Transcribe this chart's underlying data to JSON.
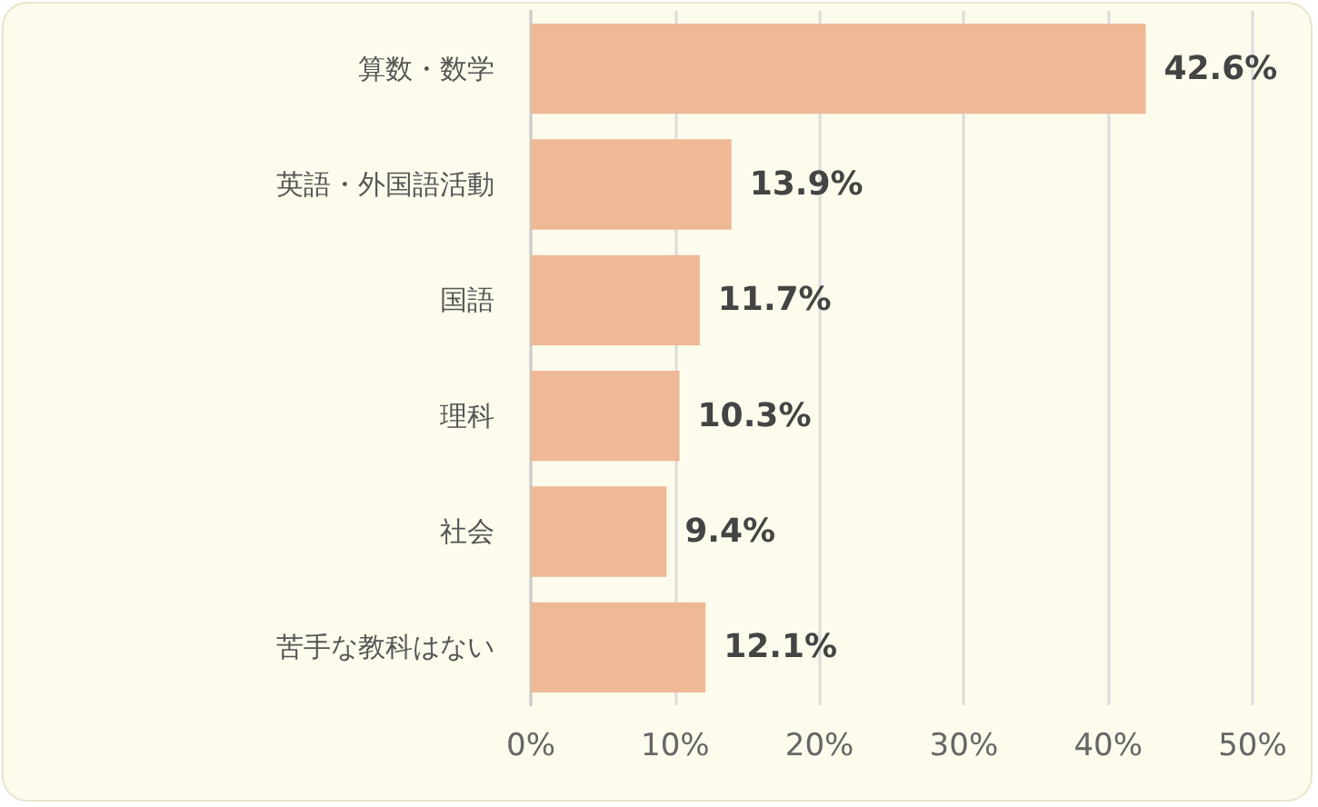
{
  "chart_data": {
    "type": "bar",
    "orientation": "horizontal",
    "categories": [
      "算数・数学",
      "英語・外国語活動",
      "国語",
      "理科",
      "社会",
      "苦手な教科はない"
    ],
    "values": [
      42.6,
      13.9,
      11.7,
      10.3,
      9.4,
      12.1
    ],
    "value_labels": [
      "42.6%",
      "13.9%",
      "11.7%",
      "10.3%",
      "9.4%",
      "12.1%"
    ],
    "color": "#eeb994",
    "xlim": [
      0,
      50
    ],
    "xticks": [
      {
        "value": 0,
        "label": "0%"
      },
      {
        "value": 10,
        "label": "10%"
      },
      {
        "value": 20,
        "label": "20%"
      },
      {
        "value": 30,
        "label": "30%"
      },
      {
        "value": 40,
        "label": "40%"
      },
      {
        "value": 50,
        "label": "50%"
      }
    ],
    "grid": "x"
  }
}
